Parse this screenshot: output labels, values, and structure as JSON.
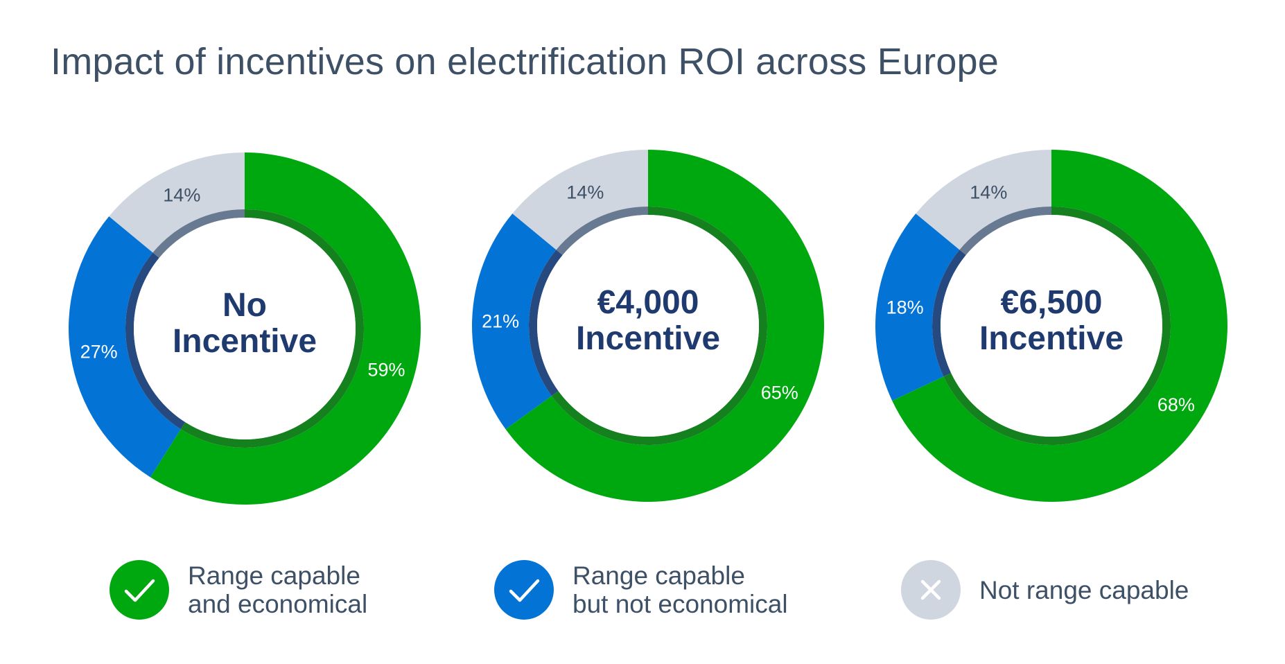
{
  "title": "Impact of incentives on electrification ROI across Europe",
  "colors": {
    "capable_economical": "#00a80f",
    "capable_economical_inner": "#15801e",
    "capable_not_economical": "#0374d5",
    "capable_not_economical_inner": "#264a80",
    "not_capable": "#d0d6df",
    "not_capable_inner": "#687a91",
    "label_dark": "#3d5066",
    "center_text": "#1f3a6e"
  },
  "chart_data": [
    {
      "type": "pie",
      "center_label": [
        "No",
        "Incentive"
      ],
      "slices": [
        {
          "label": "Range capable and economical",
          "value": 59,
          "display": "59%"
        },
        {
          "label": "Range capable but not economical",
          "value": 27,
          "display": "27%"
        },
        {
          "label": "Not range capable",
          "value": 14,
          "display": "14%"
        }
      ]
    },
    {
      "type": "pie",
      "center_label": [
        "€4,000",
        "Incentive"
      ],
      "slices": [
        {
          "label": "Range capable and economical",
          "value": 65,
          "display": "65%"
        },
        {
          "label": "Range capable but not economical",
          "value": 21,
          "display": "21%"
        },
        {
          "label": "Not range capable",
          "value": 14,
          "display": "14%"
        }
      ]
    },
    {
      "type": "pie",
      "center_label": [
        "€6,500",
        "Incentive"
      ],
      "slices": [
        {
          "label": "Range capable and economical",
          "value": 68,
          "display": "68%"
        },
        {
          "label": "Range capable but not economical",
          "value": 18,
          "display": "18%"
        },
        {
          "label": "Not range capable",
          "value": 14,
          "display": "14%"
        }
      ]
    }
  ],
  "legend": [
    {
      "lines": [
        "Range capable",
        "and economical"
      ],
      "icon": "check-icon",
      "color": "#00a80f"
    },
    {
      "lines": [
        "Range capable",
        "but not economical"
      ],
      "icon": "check-icon",
      "color": "#0374d5"
    },
    {
      "lines": [
        "Not range capable"
      ],
      "icon": "x-icon",
      "color": "#d0d6df"
    }
  ]
}
